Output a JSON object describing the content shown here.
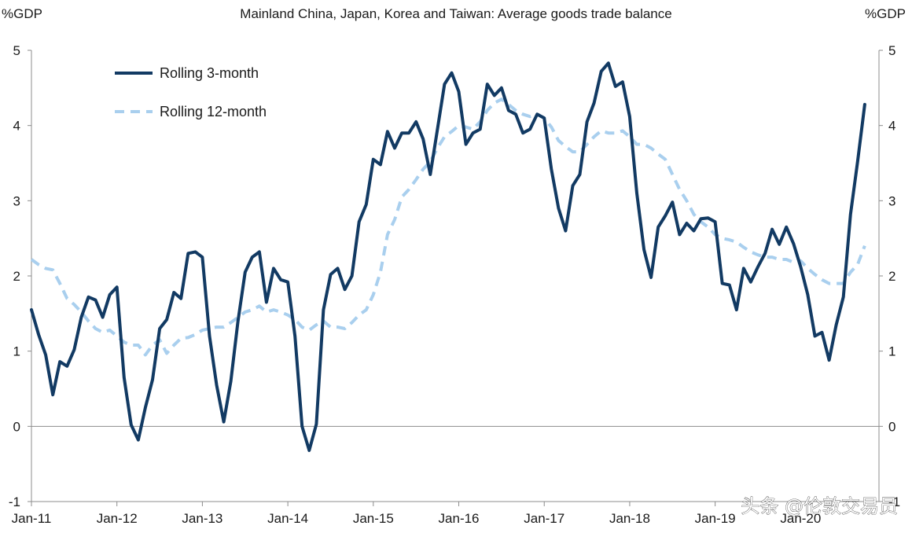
{
  "watermark": "头条 @伦敦交易员",
  "chart_data": {
    "type": "line",
    "title": "Mainland China, Japan, Korea and Taiwan: Average goods trade balance",
    "ylabel_left": "%GDP",
    "ylabel_right": "%GDP",
    "ylim": [
      -1,
      5
    ],
    "yticks": [
      -1,
      0,
      1,
      2,
      3,
      4,
      5
    ],
    "xlim": [
      "2011-01",
      "2020-12"
    ],
    "xtick_labels": [
      "Jan-11",
      "Jan-12",
      "Jan-13",
      "Jan-14",
      "Jan-15",
      "Jan-16",
      "Jan-17",
      "Jan-18",
      "Jan-19",
      "Jan-20"
    ],
    "grid": false,
    "legend_position": "top-left",
    "colors": {
      "series1": "#123a63",
      "series2": "#a9cfee",
      "axis": "#8c8c8c"
    },
    "series": [
      {
        "name": "Rolling 3-month",
        "style": "solid",
        "start": "2011-01",
        "values": [
          1.55,
          1.22,
          0.95,
          0.42,
          0.86,
          0.8,
          1.02,
          1.45,
          1.72,
          1.68,
          1.45,
          1.75,
          1.85,
          0.65,
          0.02,
          -0.18,
          0.25,
          0.62,
          1.3,
          1.42,
          1.78,
          1.7,
          2.3,
          2.32,
          2.25,
          1.2,
          0.55,
          0.06,
          0.6,
          1.4,
          2.05,
          2.25,
          2.32,
          1.65,
          2.1,
          1.95,
          1.92,
          1.2,
          0.0,
          -0.32,
          0.03,
          1.55,
          2.02,
          2.1,
          1.82,
          2.0,
          2.72,
          2.95,
          3.55,
          3.48,
          3.92,
          3.7,
          3.9,
          3.9,
          4.05,
          3.82,
          3.35,
          3.95,
          4.55,
          4.7,
          4.45,
          3.75,
          3.9,
          3.95,
          4.55,
          4.4,
          4.5,
          4.2,
          4.15,
          3.9,
          3.95,
          4.15,
          4.1,
          3.42,
          2.9,
          2.6,
          3.2,
          3.35,
          4.05,
          4.3,
          4.72,
          4.83,
          4.52,
          4.58,
          4.12,
          3.1,
          2.35,
          1.98,
          2.65,
          2.8,
          2.98,
          2.55,
          2.7,
          2.6,
          2.76,
          2.77,
          2.72,
          1.9,
          1.88,
          1.55,
          2.1,
          1.92,
          2.12,
          2.3,
          2.62,
          2.42,
          2.65,
          2.43,
          2.12,
          1.75,
          1.2,
          1.25,
          0.88,
          1.35,
          1.72,
          2.82,
          3.52,
          4.28
        ]
      },
      {
        "name": "Rolling 12-month",
        "style": "dashed",
        "start": "2011-01",
        "values": [
          2.22,
          2.15,
          2.1,
          2.08,
          1.9,
          1.7,
          1.62,
          1.52,
          1.4,
          1.3,
          1.25,
          1.28,
          1.2,
          1.12,
          1.08,
          1.08,
          0.95,
          1.08,
          1.15,
          0.97,
          1.08,
          1.17,
          1.18,
          1.22,
          1.28,
          1.3,
          1.32,
          1.32,
          1.38,
          1.45,
          1.52,
          1.55,
          1.6,
          1.52,
          1.55,
          1.52,
          1.48,
          1.42,
          1.32,
          1.28,
          1.35,
          1.4,
          1.32,
          1.32,
          1.3,
          1.38,
          1.48,
          1.55,
          1.75,
          2.05,
          2.55,
          2.75,
          3.05,
          3.15,
          3.28,
          3.42,
          3.52,
          3.7,
          3.85,
          3.92,
          4.0,
          3.98,
          3.95,
          4.05,
          4.2,
          4.3,
          4.35,
          4.28,
          4.2,
          4.15,
          4.12,
          4.15,
          4.1,
          3.98,
          3.8,
          3.72,
          3.65,
          3.65,
          3.75,
          3.85,
          3.93,
          3.9,
          3.9,
          3.93,
          3.85,
          3.75,
          3.75,
          3.7,
          3.62,
          3.55,
          3.35,
          3.15,
          3.0,
          2.82,
          2.72,
          2.65,
          2.55,
          2.5,
          2.48,
          2.45,
          2.38,
          2.32,
          2.28,
          2.25,
          2.25,
          2.22,
          2.22,
          2.18,
          2.2,
          2.1,
          2.02,
          1.95,
          1.9,
          1.9,
          1.9,
          2.05,
          2.15,
          2.4
        ]
      }
    ]
  }
}
